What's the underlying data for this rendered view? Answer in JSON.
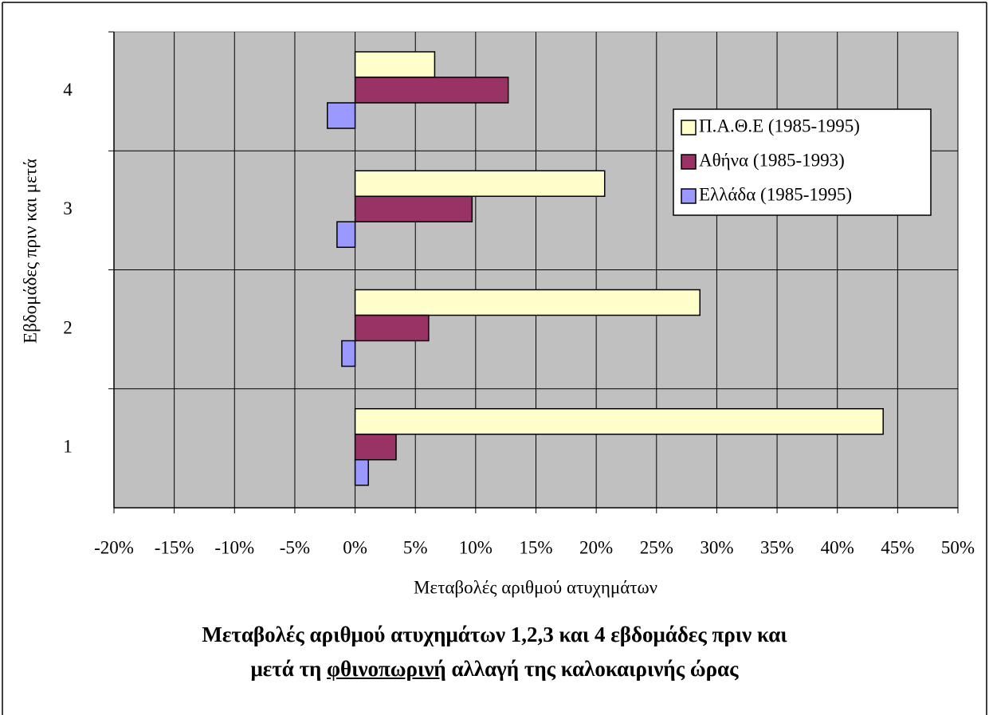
{
  "chart_data": {
    "type": "hbar",
    "title": {
      "line1": "Μεταβολές αριθμού ατυχημάτων 1,2,3 και 4 εβδομάδες πριν και",
      "line2_start": "μετά τη",
      "line2_underlined": "φθινοπωρινή",
      "line2_end": "αλλαγή της καλοκαιρινής ώρας"
    },
    "x_label": "Μεταβολές αριθμού ατυχημάτων",
    "y_label": "Εβδομάδες πριν και μετά",
    "categories": [
      "1",
      "2",
      "3",
      "4"
    ],
    "series": [
      {
        "name": "Π.Α.Θ.Ε (1985-1995)",
        "color": "#ffffcc",
        "values": [
          43.8,
          28.6,
          20.7,
          6.6
        ]
      },
      {
        "name": "Αθήνα (1985-1993)",
        "color": "#993366",
        "values": [
          3.4,
          6.1,
          9.7,
          12.7
        ]
      },
      {
        "name": "Ελλάδα (1985-1995)",
        "color": "#9999ff",
        "values": [
          1.1,
          -1.1,
          -1.5,
          -2.3
        ]
      }
    ],
    "xlim": [
      -20,
      50
    ],
    "xticks": [
      {
        "value": -20,
        "label": "-20%"
      },
      {
        "value": -15,
        "label": "-15%"
      },
      {
        "value": -10,
        "label": "-10%"
      },
      {
        "value": -5,
        "label": "-5%"
      },
      {
        "value": 0,
        "label": "0%"
      },
      {
        "value": 5,
        "label": "5%"
      },
      {
        "value": 10,
        "label": "10%"
      },
      {
        "value": 15,
        "label": "15%"
      },
      {
        "value": 20,
        "label": "20%"
      },
      {
        "value": 25,
        "label": "25%"
      },
      {
        "value": 30,
        "label": "30%"
      },
      {
        "value": 35,
        "label": "35%"
      },
      {
        "value": 40,
        "label": "40%"
      },
      {
        "value": 45,
        "label": "45%"
      },
      {
        "value": 50,
        "label": "50%"
      }
    ],
    "grid": true,
    "plot_background": "#c0c0c0",
    "legend": "upper right"
  }
}
